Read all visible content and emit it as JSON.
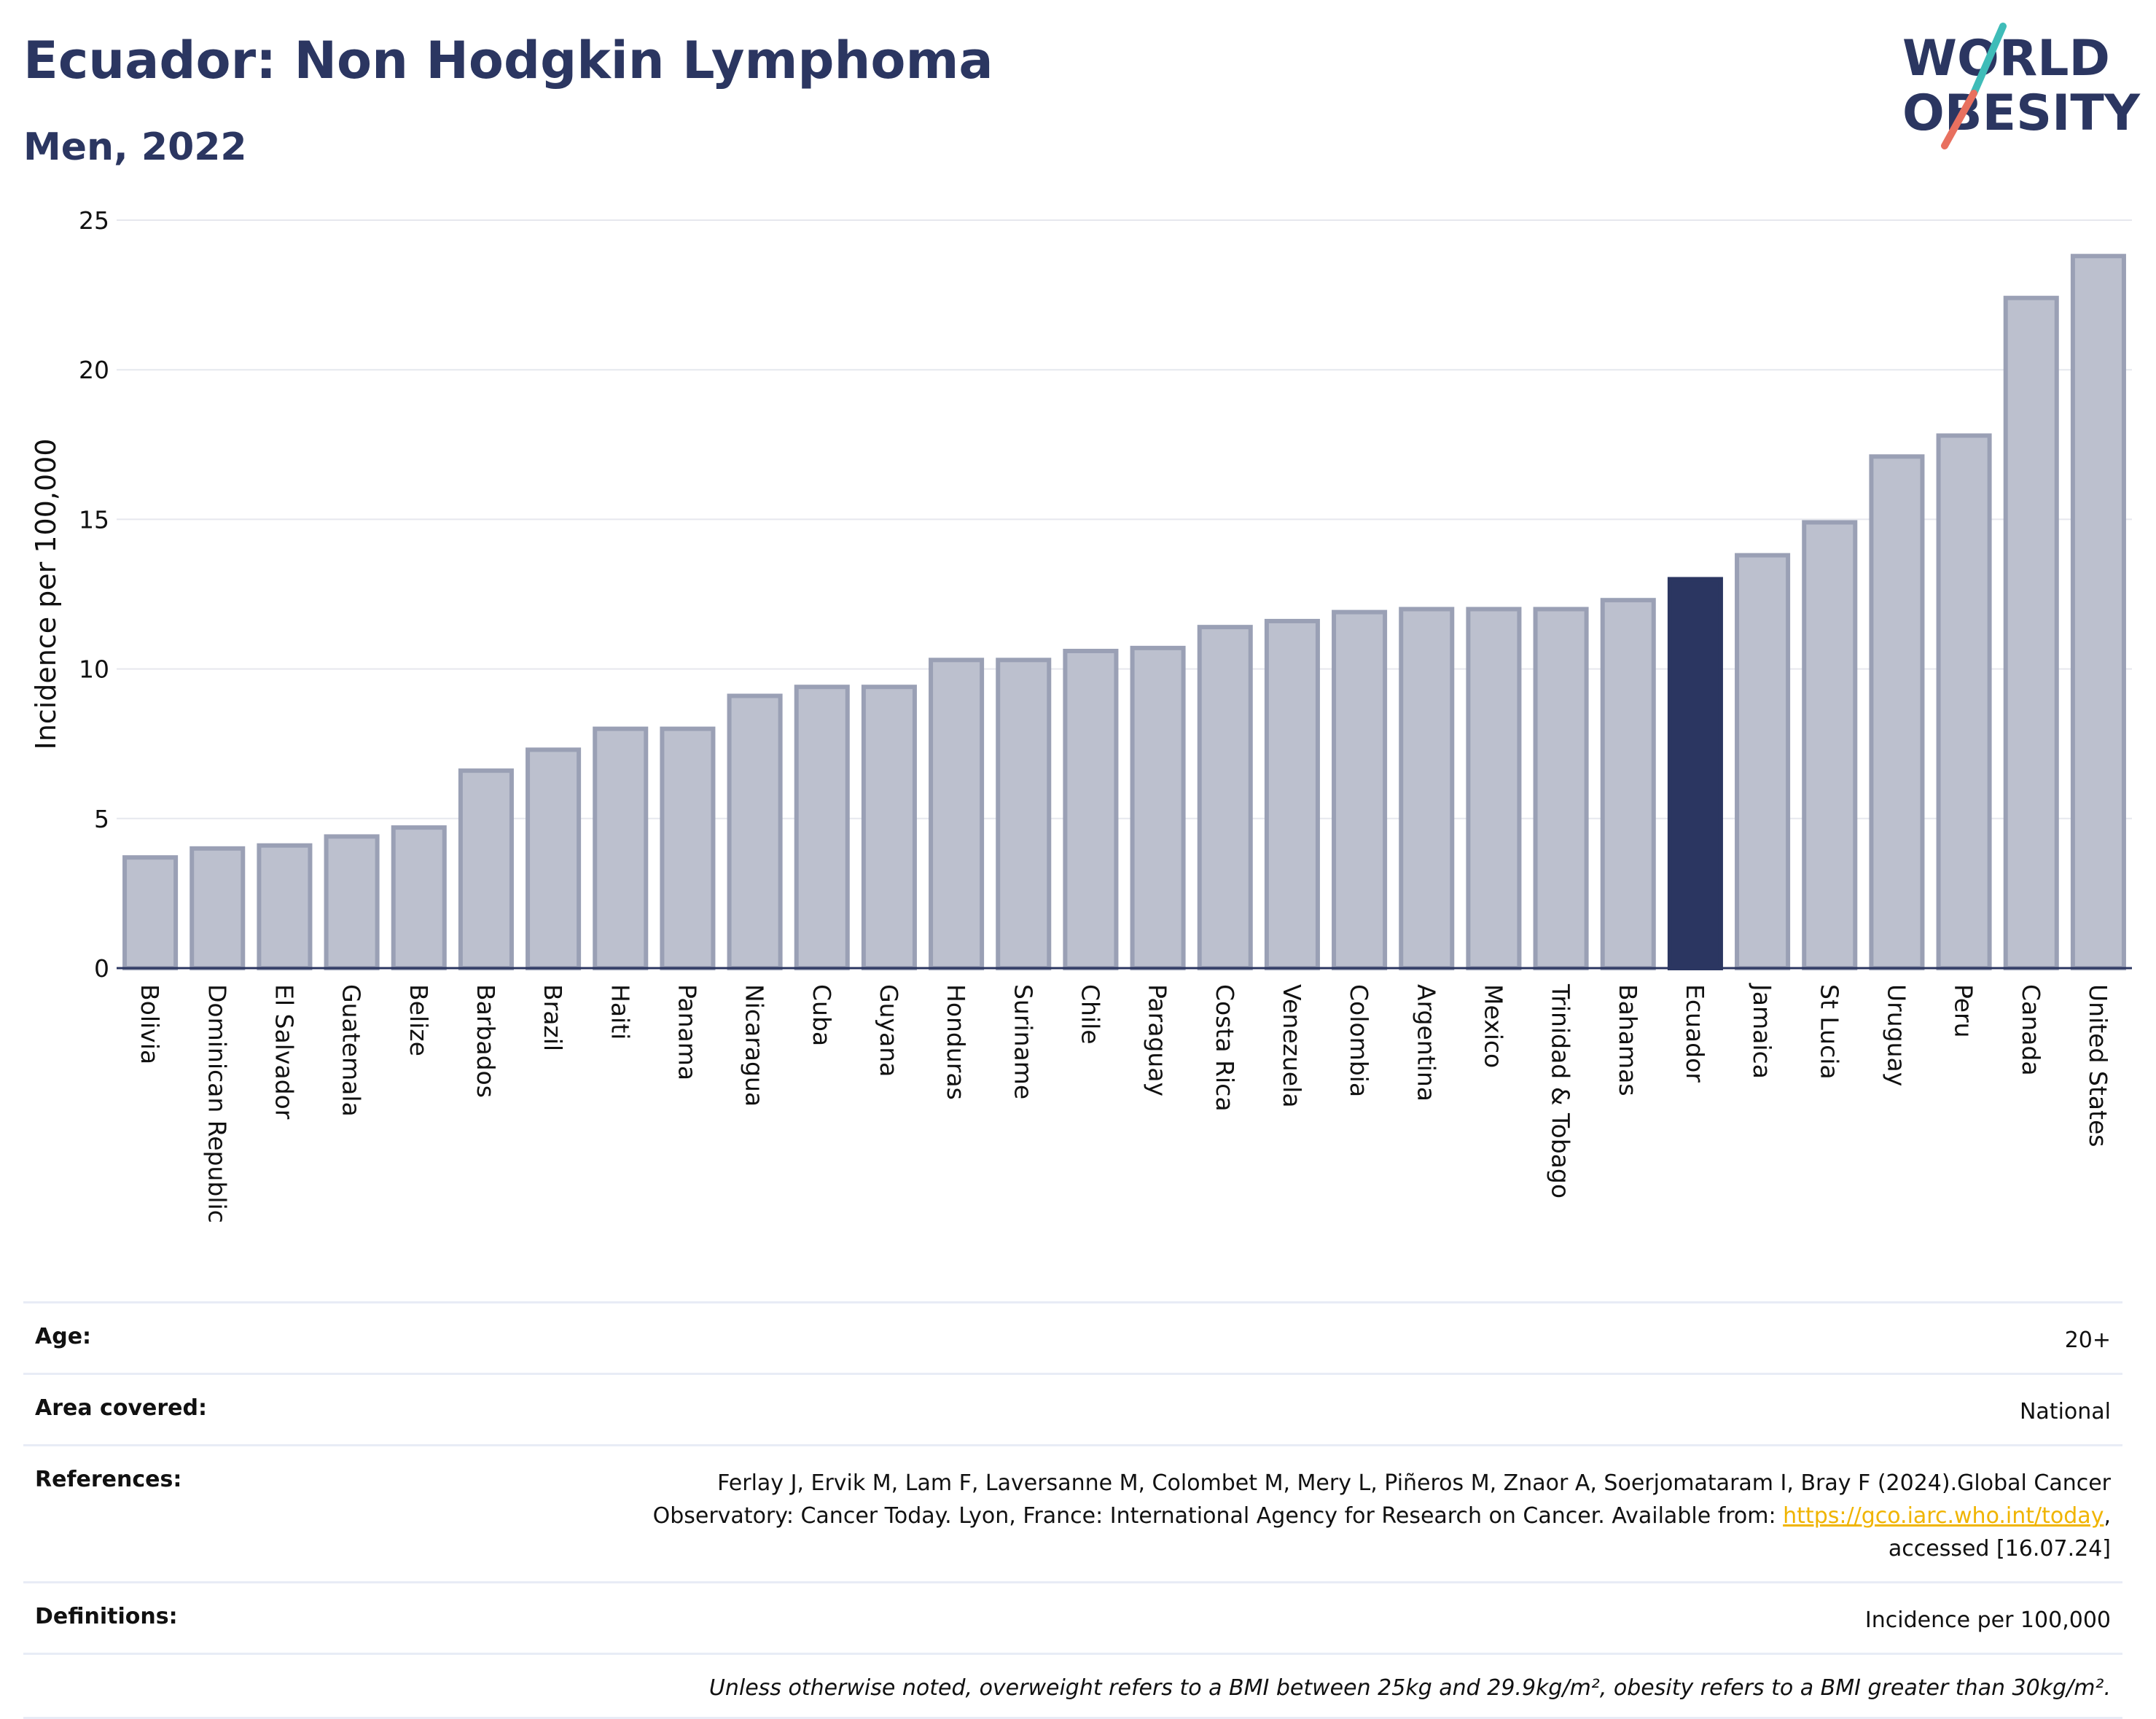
{
  "title": "Ecuador: Non Hodgkin Lymphoma",
  "subtitle": "Men, 2022",
  "logo": {
    "line1": "WORLD",
    "line2": "OBESITY"
  },
  "colors": {
    "bar_default": "#bcc0ce",
    "bar_default_stroke": "#9aa0b5",
    "bar_highlight": "#2b3661",
    "title": "#2b3661",
    "gridline": "#e6e8ee",
    "logo_teal": "#3fbcb8",
    "logo_coral": "#e8705f",
    "link": "#f0b400"
  },
  "chart_data": {
    "type": "bar",
    "ylabel": "Incidence per 100,000",
    "ylim": [
      0,
      25
    ],
    "yticks": [
      0,
      5,
      10,
      15,
      20,
      25
    ],
    "grid": true,
    "highlight": "Ecuador",
    "categories": [
      "Bolivia",
      "Dominican Republic",
      "El Salvador",
      "Guatemala",
      "Belize",
      "Barbados",
      "Brazil",
      "Haiti",
      "Panama",
      "Nicaragua",
      "Cuba",
      "Guyana",
      "Honduras",
      "Suriname",
      "Chile",
      "Paraguay",
      "Costa Rica",
      "Venezuela",
      "Colombia",
      "Argentina",
      "Mexico",
      "Trinidad & Tobago",
      "Bahamas",
      "Ecuador",
      "Jamaica",
      "St Lucia",
      "Uruguay",
      "Peru",
      "Canada",
      "United States"
    ],
    "values": [
      3.7,
      4.0,
      4.1,
      4.4,
      4.7,
      6.6,
      7.3,
      8.0,
      8.0,
      9.1,
      9.4,
      9.4,
      10.3,
      10.3,
      10.6,
      10.7,
      11.4,
      11.6,
      11.9,
      12.0,
      12.0,
      12.0,
      12.3,
      13.0,
      13.8,
      14.9,
      17.1,
      17.8,
      22.4,
      23.8
    ]
  },
  "info": {
    "age_label": "Age:",
    "age_value": "20+",
    "area_label": "Area covered:",
    "area_value": "National",
    "references_label": "References:",
    "references_text_1": "Ferlay J, Ervik M, Lam F, Laversanne M, Colombet M, Mery L, Piñeros M, Znaor A, Soerjomataram I, Bray F (2024).Global Cancer Observatory: Cancer Today. Lyon, France: International Agency for Research on Cancer. Available from:",
    "references_link": "https://gco.iarc.who.int/today",
    "references_text_2": ", accessed [16.07.24]",
    "definitions_label": "Definitions:",
    "definitions_value": "Incidence per 100,000",
    "note": "Unless otherwise noted, overweight refers to a BMI between 25kg and 29.9kg/m², obesity refers to a BMI greater than 30kg/m²."
  }
}
